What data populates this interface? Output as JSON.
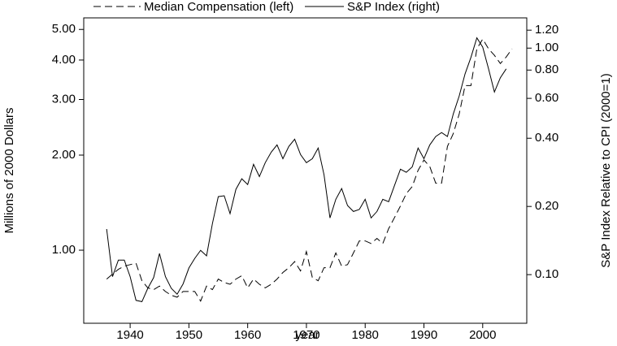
{
  "chart_data": {
    "type": "line",
    "x_label": "year",
    "y_label": "Millions of 2000 Dollars",
    "y2_label": "S&P Index Relative to CPI (2000=1)",
    "log_scale": true,
    "x": [
      1936,
      1937,
      1938,
      1939,
      1940,
      1941,
      1942,
      1943,
      1944,
      1945,
      1946,
      1947,
      1948,
      1949,
      1950,
      1951,
      1952,
      1953,
      1954,
      1955,
      1956,
      1957,
      1958,
      1959,
      1960,
      1961,
      1962,
      1963,
      1964,
      1965,
      1966,
      1967,
      1968,
      1969,
      1970,
      1971,
      1972,
      1973,
      1974,
      1975,
      1976,
      1977,
      1978,
      1979,
      1980,
      1981,
      1982,
      1983,
      1984,
      1985,
      1986,
      1987,
      1988,
      1989,
      1990,
      1991,
      1992,
      1993,
      1994,
      1995,
      1996,
      1997,
      1998,
      1999,
      2000,
      2001,
      2002,
      2003,
      2004,
      2005
    ],
    "series": [
      {
        "name": "Median Compensation (left)",
        "color": "#000000",
        "style": "dashed",
        "values": [
          0.81,
          0.84,
          0.87,
          0.89,
          0.9,
          0.91,
          0.8,
          0.76,
          0.75,
          0.77,
          0.74,
          0.72,
          0.71,
          0.74,
          0.74,
          0.74,
          0.69,
          0.77,
          0.75,
          0.81,
          0.79,
          0.78,
          0.81,
          0.83,
          0.76,
          0.81,
          0.78,
          0.76,
          0.78,
          0.81,
          0.85,
          0.88,
          0.92,
          0.86,
          0.99,
          0.82,
          0.8,
          0.88,
          0.88,
          0.98,
          0.89,
          0.9,
          0.98,
          1.07,
          1.07,
          1.05,
          1.09,
          1.05,
          1.17,
          1.27,
          1.38,
          1.51,
          1.59,
          1.79,
          1.93,
          1.84,
          1.63,
          1.63,
          2.13,
          2.34,
          2.7,
          3.32,
          3.32,
          4.34,
          4.66,
          4.34,
          4.14,
          3.9,
          4.09,
          4.34
        ]
      },
      {
        "name": "S&P Index (right)",
        "color": "#000000",
        "style": "solid",
        "axis": "y2",
        "values": [
          0.159,
          0.098,
          0.116,
          0.116,
          0.098,
          0.077,
          0.076,
          0.087,
          0.097,
          0.124,
          0.098,
          0.087,
          0.082,
          0.091,
          0.107,
          0.118,
          0.128,
          0.121,
          0.168,
          0.221,
          0.223,
          0.186,
          0.238,
          0.265,
          0.25,
          0.307,
          0.271,
          0.312,
          0.347,
          0.374,
          0.325,
          0.368,
          0.396,
          0.339,
          0.312,
          0.325,
          0.362,
          0.276,
          0.178,
          0.215,
          0.24,
          0.202,
          0.19,
          0.194,
          0.215,
          0.178,
          0.19,
          0.215,
          0.21,
          0.248,
          0.292,
          0.283,
          0.299,
          0.362,
          0.325,
          0.374,
          0.407,
          0.424,
          0.407,
          0.512,
          0.615,
          0.77,
          0.91,
          1.11,
          1.01,
          0.81,
          0.64,
          0.74,
          0.81,
          null
        ]
      }
    ],
    "xlim": [
      1932.1,
      2007.5
    ],
    "xticks": [
      1940,
      1950,
      1960,
      1970,
      1980,
      1990,
      2000
    ],
    "ylim": [
      0.587,
      5.44
    ],
    "yticks": [
      {
        "value": 1,
        "label": "1.00"
      },
      {
        "value": 2,
        "label": "2.00"
      },
      {
        "value": 3,
        "label": "3.00"
      },
      {
        "value": 4,
        "label": "4.00"
      },
      {
        "value": 5,
        "label": "5.00"
      }
    ],
    "y2lim": [
      0.061,
      1.36
    ],
    "y2ticks": [
      {
        "value": 0.1,
        "label": "0.10"
      },
      {
        "value": 0.2,
        "label": "0.20"
      },
      {
        "value": 0.4,
        "label": "0.40"
      },
      {
        "value": 0.6,
        "label": "0.60"
      },
      {
        "value": 0.8,
        "label": "0.80"
      },
      {
        "value": 1,
        "label": "1.00"
      },
      {
        "value": 1.2,
        "label": "1.20"
      }
    ]
  }
}
